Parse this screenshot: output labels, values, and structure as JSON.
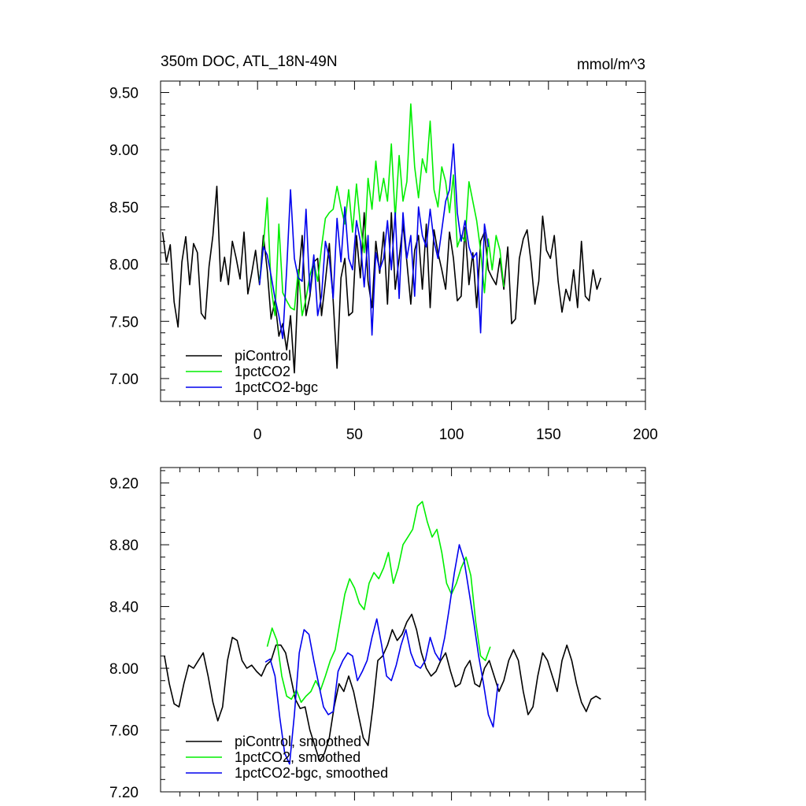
{
  "chart_data": [
    {
      "type": "line",
      "title": "350m DOC, ATL_18N-49N",
      "units": "mmol/m^3",
      "xlim": [
        -50,
        200
      ],
      "ylim": [
        6.8,
        9.6
      ],
      "x_ticks": [
        0,
        50,
        100,
        150,
        200
      ],
      "y_ticks": [
        "7.00",
        "7.50",
        "8.00",
        "8.50",
        "9.00",
        "9.50"
      ],
      "legend_position": "bottom-left",
      "series": [
        {
          "name": "piControl",
          "color": "#000000",
          "x_start": -49,
          "x_step": 2,
          "values": [
            8.28,
            8.02,
            8.17,
            7.67,
            7.45,
            8.02,
            8.24,
            7.82,
            8.18,
            8.1,
            7.57,
            7.52,
            7.98,
            8.25,
            8.68,
            7.85,
            8.06,
            7.82,
            8.2,
            8.05,
            7.87,
            8.28,
            7.74,
            7.92,
            8.12,
            7.82,
            8.25,
            7.95,
            7.52,
            7.68,
            7.37,
            7.48,
            7.25,
            7.55,
            7.05,
            7.85,
            8.25,
            7.55,
            7.72,
            8.02,
            8.05,
            7.55,
            7.85,
            8.18,
            7.68,
            7.09,
            7.88,
            8.05,
            7.55,
            7.58,
            8.25,
            7.88,
            8.45,
            7.85,
            7.62,
            8.2,
            7.92,
            8.28,
            7.65,
            8.45,
            7.78,
            8.05,
            8.35,
            8.02,
            7.65,
            8.12,
            8.25,
            7.78,
            8.35,
            7.62,
            8.3,
            8.1,
            7.95,
            7.78,
            8.28,
            8.05,
            7.68,
            7.72,
            8.32,
            7.82,
            8.1,
            7.62,
            8.2,
            8.28,
            7.95,
            7.88,
            7.82,
            8.05,
            7.78,
            8.15,
            7.48,
            7.52,
            8.05,
            8.22,
            8.3,
            8.02,
            7.65,
            7.85,
            8.42,
            8.12,
            8.05,
            8.25,
            7.85,
            7.58,
            7.78,
            7.68,
            7.95,
            7.62,
            8.2,
            7.72,
            7.68,
            7.95,
            7.78,
            7.88
          ]
        },
        {
          "name": "1pctCO2",
          "color": "#00ee00",
          "x_start": 1,
          "x_step": 2,
          "values": [
            7.85,
            8.15,
            8.58,
            7.8,
            7.55,
            8.35,
            7.75,
            7.68,
            7.62,
            7.6,
            7.95,
            7.55,
            7.7,
            7.9,
            8.02,
            7.85,
            8.15,
            8.4,
            8.45,
            8.48,
            8.68,
            8.5,
            8.35,
            8.65,
            8.28,
            8.7,
            8.35,
            8.1,
            8.75,
            8.48,
            8.9,
            8.55,
            8.75,
            8.55,
            9.05,
            8.4,
            8.95,
            8.55,
            8.72,
            9.4,
            8.85,
            8.58,
            8.92,
            8.8,
            9.25,
            8.65,
            8.5,
            8.85,
            8.72,
            8.45,
            8.78,
            8.15,
            8.25,
            8.2,
            8.72,
            8.55,
            8.38,
            8.12,
            7.75,
            8.22,
            7.95,
            8.25,
            8.12,
            7.8
          ]
        },
        {
          "name": "1pctCO2-bgc",
          "color": "#0000ee",
          "x_start": 1,
          "x_step": 2,
          "values": [
            7.82,
            8.15,
            8.08,
            7.9,
            7.7,
            7.55,
            7.35,
            7.95,
            8.65,
            8.05,
            7.88,
            7.85,
            8.48,
            7.75,
            8.08,
            7.55,
            7.72,
            8.2,
            8.05,
            7.7,
            8.4,
            8.02,
            8.5,
            8.05,
            7.95,
            8.38,
            8.2,
            7.8,
            8.25,
            7.38,
            8.1,
            7.95,
            8.05,
            8.38,
            7.95,
            8.45,
            7.7,
            8.45,
            8.05,
            8.25,
            7.72,
            8.5,
            8.25,
            8.15,
            8.48,
            8.2,
            8.05,
            8.3,
            8.55,
            8.65,
            9.05,
            8.45,
            8.2,
            8.38,
            8.15,
            8.05,
            8.1,
            7.4,
            8.35,
            8.15
          ]
        }
      ]
    },
    {
      "type": "line",
      "xlim": [
        -50,
        200
      ],
      "ylim": [
        7.2,
        9.3
      ],
      "y_ticks": [
        "7.20",
        "7.60",
        "8.00",
        "8.40",
        "8.80",
        "9.20"
      ],
      "legend_position": "bottom-left",
      "series": [
        {
          "name": "piControl, smoothed",
          "color": "#000000",
          "x_start": -48,
          "x_step": 2.5,
          "values": [
            8.08,
            7.9,
            7.77,
            7.75,
            7.9,
            8.02,
            8.0,
            8.05,
            8.1,
            7.95,
            7.78,
            7.66,
            7.75,
            8.05,
            8.2,
            8.18,
            8.05,
            8.0,
            8.02,
            7.98,
            7.95,
            8.02,
            8.05,
            8.15,
            8.15,
            8.1,
            7.95,
            7.8,
            7.74,
            7.75,
            7.6,
            7.5,
            7.4,
            7.45,
            7.55,
            7.75,
            7.9,
            7.85,
            7.95,
            7.85,
            7.7,
            7.55,
            7.5,
            7.75,
            8.05,
            8.08,
            8.15,
            8.25,
            8.18,
            8.22,
            8.3,
            8.35,
            8.25,
            8.1,
            8.0,
            7.95,
            7.98,
            8.05,
            8.1,
            7.98,
            7.88,
            7.9,
            8.0,
            8.05,
            7.9,
            7.88,
            8.0,
            8.05,
            7.95,
            7.85,
            7.92,
            8.05,
            8.12,
            8.05,
            7.85,
            7.7,
            7.75,
            7.95,
            8.1,
            8.05,
            7.95,
            7.85,
            8.05,
            8.15,
            8.05,
            7.9,
            7.78,
            7.72,
            7.8,
            7.82,
            7.8
          ]
        },
        {
          "name": "1pctCO2, smoothed",
          "color": "#00ee00",
          "x_start": 5,
          "x_step": 2.5,
          "values": [
            8.14,
            8.26,
            8.18,
            7.95,
            7.82,
            7.8,
            7.86,
            7.78,
            7.82,
            7.85,
            7.92,
            7.86,
            7.95,
            8.05,
            8.12,
            8.3,
            8.48,
            8.58,
            8.52,
            8.42,
            8.38,
            8.55,
            8.62,
            8.58,
            8.65,
            8.75,
            8.55,
            8.65,
            8.8,
            8.85,
            8.9,
            9.05,
            9.08,
            8.95,
            8.85,
            8.9,
            8.75,
            8.55,
            8.48,
            8.55,
            8.65,
            8.72,
            8.6,
            8.3,
            8.08,
            8.05,
            8.14
          ]
        },
        {
          "name": "1pctCO2-bgc, smoothed",
          "color": "#0000ee",
          "x_start": 4,
          "x_step": 2.5,
          "values": [
            8.04,
            8.06,
            7.95,
            7.68,
            7.45,
            7.38,
            7.7,
            8.1,
            8.25,
            8.22,
            8.05,
            7.9,
            7.75,
            7.7,
            7.72,
            7.98,
            8.05,
            8.1,
            8.08,
            7.92,
            7.98,
            8.05,
            8.2,
            8.32,
            8.15,
            7.95,
            7.92,
            8.02,
            8.15,
            8.25,
            8.1,
            8.02,
            8.0,
            8.05,
            8.2,
            8.1,
            8.05,
            8.2,
            8.4,
            8.62,
            8.8,
            8.7,
            8.5,
            8.3,
            8.08,
            7.9,
            7.7,
            7.62,
            7.9
          ]
        }
      ]
    }
  ]
}
